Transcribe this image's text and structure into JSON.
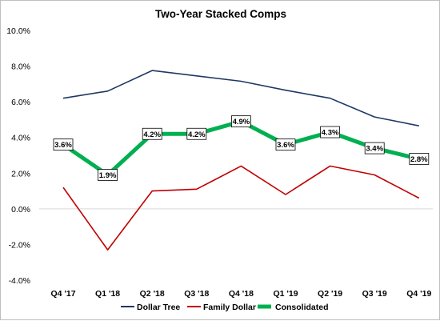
{
  "chart_data": {
    "type": "line",
    "title": "Two-Year Stacked Comps",
    "categories": [
      "Q4 '17",
      "Q1 '18",
      "Q2 '18",
      "Q3 '18",
      "Q4 '18",
      "Q1 '19",
      "Q2 '19",
      "Q3 '19",
      "Q4 '19"
    ],
    "ylim": [
      -4,
      10
    ],
    "yticks": [
      -4,
      -2,
      0,
      2,
      4,
      6,
      8,
      10
    ],
    "ytick_labels": [
      "-4.0%",
      "-2.0%",
      "0.0%",
      "2.0%",
      "4.0%",
      "6.0%",
      "8.0%",
      "10.0%"
    ],
    "grid": false,
    "legend_position": "bottom",
    "series": [
      {
        "name": "Dollar Tree",
        "color": "#1f3864",
        "values": [
          6.2,
          6.6,
          7.75,
          7.45,
          7.15,
          6.65,
          6.2,
          5.15,
          4.65
        ]
      },
      {
        "name": "Family Dollar",
        "color": "#c00000",
        "values": [
          1.2,
          -2.3,
          1.0,
          1.1,
          2.4,
          0.8,
          2.4,
          1.9,
          0.6
        ]
      },
      {
        "name": "Consolidated",
        "color": "#00b050",
        "values": [
          3.6,
          1.9,
          4.2,
          4.2,
          4.9,
          3.6,
          4.3,
          3.4,
          2.8
        ],
        "data_labels": [
          "3.6%",
          "1.9%",
          "4.2%",
          "4.2%",
          "4.9%",
          "3.6%",
          "4.3%",
          "3.4%",
          "2.8%"
        ]
      }
    ]
  }
}
